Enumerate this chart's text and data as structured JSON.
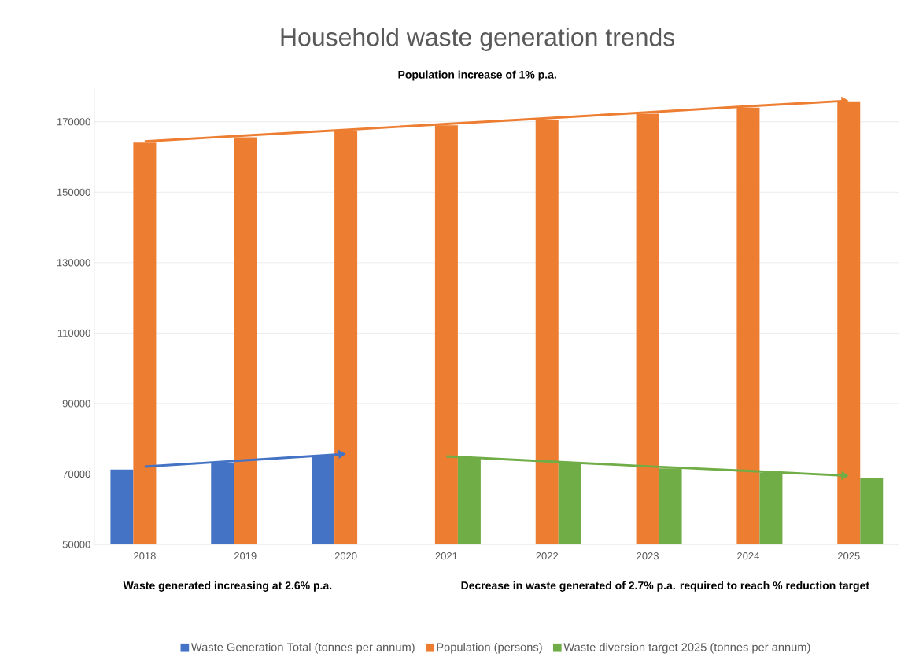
{
  "chart_data": {
    "type": "bar",
    "title": "Household waste generation trends",
    "subtitle": "Population increase of 1% p.a.",
    "categories": [
      "2018",
      "2019",
      "2020",
      "2021",
      "2022",
      "2023",
      "2024",
      "2025"
    ],
    "series": [
      {
        "name": "Waste Generation Total (tonnes per annum)",
        "color": "#4472c4",
        "values": [
          71300,
          73100,
          75000,
          null,
          null,
          null,
          null,
          null
        ]
      },
      {
        "name": "Population (persons)",
        "color": "#ed7d31",
        "values": [
          164100,
          165600,
          167300,
          169000,
          170600,
          172300,
          174000,
          175800
        ]
      },
      {
        "name": "Waste diversion target 2025 (tonnes per annum)",
        "color": "#70ad47",
        "values": [
          null,
          null,
          null,
          74600,
          73000,
          71600,
          70300,
          68800
        ]
      },
      {
        "type": "line",
        "color": "#ed7d31",
        "values": [
          164400,
          166100,
          167700,
          169400,
          171000,
          172700,
          174400,
          176000
        ]
      },
      {
        "type": "line",
        "color": "#4472c4",
        "values": [
          72100,
          73900,
          75700,
          null,
          null,
          null,
          null,
          null
        ]
      },
      {
        "type": "line",
        "color": "#70ad47",
        "values": [
          null,
          null,
          null,
          75000,
          73600,
          72200,
          70900,
          69500
        ]
      }
    ],
    "ylim": [
      50000,
      180000
    ],
    "yticks": [
      50000,
      70000,
      90000,
      110000,
      130000,
      150000,
      170000
    ],
    "grid": "y",
    "legend": "bottom",
    "annotations": [
      "Waste generated increasing at 2.6% p.a.",
      "Decrease in waste generated of 2.7% p.a. required to reach % reduction target"
    ]
  }
}
